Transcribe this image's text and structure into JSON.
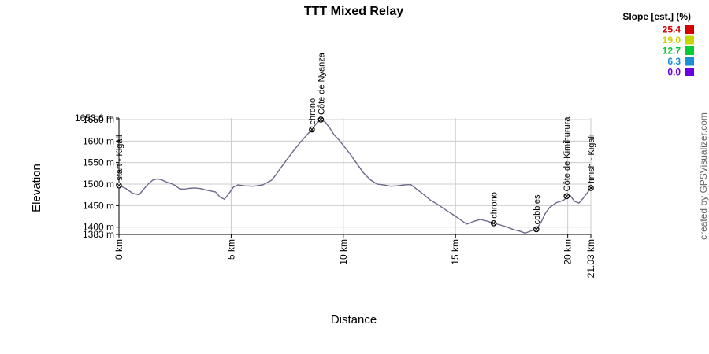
{
  "chart_data": {
    "type": "line",
    "title": "TTT Mixed Relay",
    "xlabel": "Distance",
    "ylabel": "Elevation",
    "xlim": [
      0,
      21.03
    ],
    "ylim": [
      1383,
      1653.6
    ],
    "x_ticks": [
      {
        "value": 0,
        "label": "0 km"
      },
      {
        "value": 5,
        "label": "5 km"
      },
      {
        "value": 10,
        "label": "10 km"
      },
      {
        "value": 15,
        "label": "15 km"
      },
      {
        "value": 20,
        "label": "20 km"
      },
      {
        "value": 21.03,
        "label": "21.03 km"
      }
    ],
    "y_ticks": [
      {
        "value": 1383,
        "label": "1383 m"
      },
      {
        "value": 1400,
        "label": "1400 m"
      },
      {
        "value": 1450,
        "label": "1450 m"
      },
      {
        "value": 1500,
        "label": "1500 m"
      },
      {
        "value": 1550,
        "label": "1550 m"
      },
      {
        "value": 1600,
        "label": "1600 m"
      },
      {
        "value": 1650,
        "label": "1650 m"
      },
      {
        "value": 1653.6,
        "label": "1653.6 m"
      }
    ],
    "grid": true,
    "series": [
      {
        "x": [
          0,
          0.3,
          0.6,
          0.9,
          1.1,
          1.3,
          1.5,
          1.7,
          1.9,
          2.1,
          2.3,
          2.5,
          2.7,
          2.9,
          3.1,
          3.4,
          3.7,
          3.9,
          4.1,
          4.3,
          4.5,
          4.7,
          4.9,
          5.1,
          5.3,
          5.6,
          6.0,
          6.4,
          6.8,
          7.0,
          7.2,
          7.5,
          7.8,
          8.1,
          8.4,
          8.6,
          8.8,
          9.0,
          9.2,
          9.4,
          9.6,
          9.8,
          10.0,
          10.3,
          10.6,
          10.9,
          11.2,
          11.5,
          11.8,
          12.1,
          12.4,
          12.7,
          13.0,
          13.3,
          13.6,
          13.9,
          14.2,
          14.5,
          14.8,
          15.0,
          15.2,
          15.5,
          15.8,
          16.1,
          16.4,
          16.7,
          17.0,
          17.3,
          17.6,
          17.9,
          18.1,
          18.4,
          18.6,
          18.8,
          19.0,
          19.2,
          19.5,
          19.8,
          20.0,
          20.1,
          20.3,
          20.5,
          20.7,
          20.9,
          21.03
        ],
        "y": [
          1497,
          1490,
          1479,
          1475,
          1488,
          1500,
          1509,
          1512,
          1510,
          1505,
          1502,
          1497,
          1489,
          1488,
          1490,
          1491,
          1489,
          1486,
          1484,
          1482,
          1470,
          1465,
          1478,
          1493,
          1498,
          1496,
          1495,
          1498,
          1509,
          1522,
          1537,
          1558,
          1579,
          1598,
          1616,
          1627,
          1641,
          1650,
          1644,
          1630,
          1614,
          1603,
          1590,
          1570,
          1548,
          1526,
          1510,
          1500,
          1498,
          1495,
          1496,
          1498,
          1499,
          1487,
          1475,
          1462,
          1453,
          1442,
          1432,
          1425,
          1418,
          1407,
          1413,
          1418,
          1414,
          1409,
          1405,
          1400,
          1394,
          1390,
          1386,
          1392,
          1395,
          1410,
          1432,
          1446,
          1457,
          1462,
          1471,
          1474,
          1460,
          1456,
          1468,
          1482,
          1491
        ]
      }
    ],
    "waypoints": [
      {
        "label": "start - Kigali",
        "x": 0,
        "y": 1497
      },
      {
        "label": "chrono",
        "x": 8.6,
        "y": 1627
      },
      {
        "label": "Côte de Nyanza",
        "x": 9.0,
        "y": 1650
      },
      {
        "label": "chrono",
        "x": 16.7,
        "y": 1409
      },
      {
        "label": "cobbles",
        "x": 18.6,
        "y": 1395
      },
      {
        "label": "Côte de Kimihurura",
        "x": 19.95,
        "y": 1472
      },
      {
        "label": "finish - Kigali",
        "x": 21.03,
        "y": 1491
      }
    ],
    "legend": {
      "title": "Slope [est.] (%)",
      "placement": "top-right",
      "items": [
        {
          "value": "25.4",
          "color": "#d40000"
        },
        {
          "value": "19.0",
          "color": "#c8d400"
        },
        {
          "value": "12.7",
          "color": "#00cc33"
        },
        {
          "value": "6.3",
          "color": "#1a8fd6"
        },
        {
          "value": "0.0",
          "color": "#6a00e0"
        }
      ]
    },
    "line_color": "#6a6a8a"
  },
  "credit": "created by GPSVisualizer.com"
}
